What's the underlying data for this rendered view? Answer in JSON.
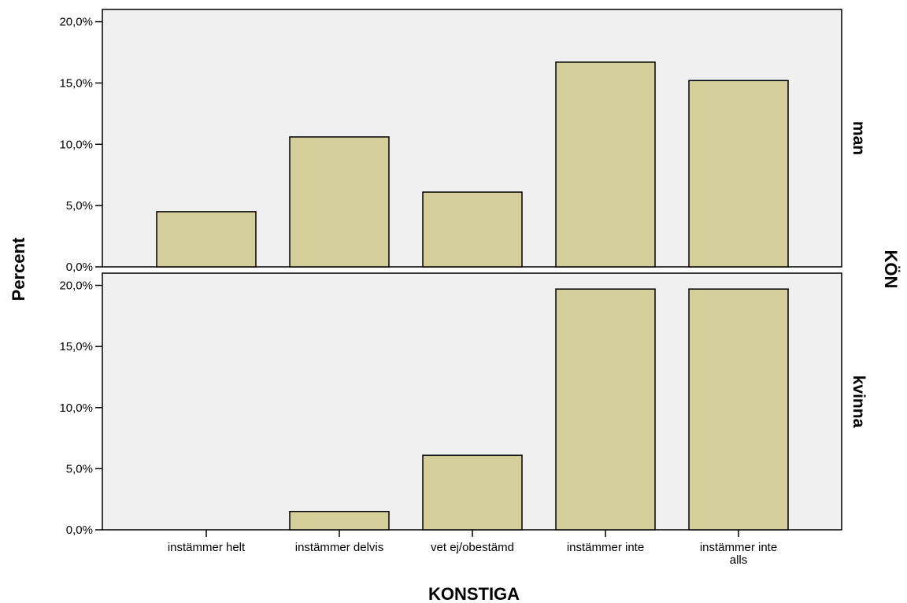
{
  "chart_data": {
    "type": "bar",
    "layout": "faceted-rows",
    "xlabel": "KONSTIGA",
    "ylabel": "Percent",
    "facet_label": "KÖN",
    "categories": [
      "instämmer helt",
      "instämmer delvis",
      "vet ej/obestämd",
      "instämmer inte",
      "instämmer inte alls"
    ],
    "category_lines": [
      [
        "instämmer helt"
      ],
      [
        "instämmer delvis"
      ],
      [
        "vet ej/obestämd"
      ],
      [
        "instämmer inte"
      ],
      [
        "instämmer inte",
        "alls"
      ]
    ],
    "yticks": [
      "0,0%",
      "5,0%",
      "10,0%",
      "15,0%",
      "20,0%"
    ],
    "ylim": [
      0,
      21
    ],
    "grid": false,
    "colors": {
      "bar": "#d4cf9a",
      "panel_bg": "#f0f0f0",
      "stroke": "#000000"
    },
    "panels": [
      {
        "name": "man",
        "values": [
          4.5,
          10.6,
          6.1,
          16.7,
          15.2
        ]
      },
      {
        "name": "kvinna",
        "values": [
          0.0,
          1.5,
          6.1,
          19.7,
          19.7
        ]
      }
    ]
  }
}
